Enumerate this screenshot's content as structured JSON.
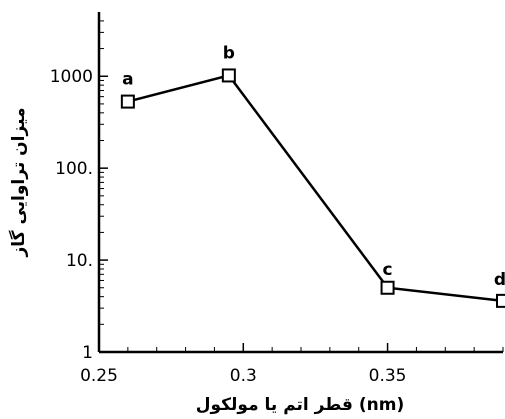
{
  "chart_data": {
    "type": "line",
    "title": "",
    "xlabel": "قطر اتم یا مولکول (nm)",
    "ylabel": "میزان تراوایی گاز",
    "xscale": "linear",
    "yscale": "log",
    "xlim": [
      0.25,
      0.39
    ],
    "ylim": [
      1,
      5000
    ],
    "xticks": [
      0.25,
      0.3,
      0.35
    ],
    "xtick_labels": [
      "0.25",
      "0.3",
      "0.35"
    ],
    "yticks": [
      1,
      10,
      100,
      1000
    ],
    "ytick_labels": [
      "1",
      "10.",
      "100.",
      "1000"
    ],
    "grid": false,
    "marker": "square",
    "series": [
      {
        "x": [
          0.26,
          0.295,
          0.35,
          0.39
        ],
        "y": [
          530,
          1020,
          5,
          3.6
        ],
        "point_labels": [
          "a",
          "b",
          "c",
          "d"
        ]
      }
    ]
  }
}
